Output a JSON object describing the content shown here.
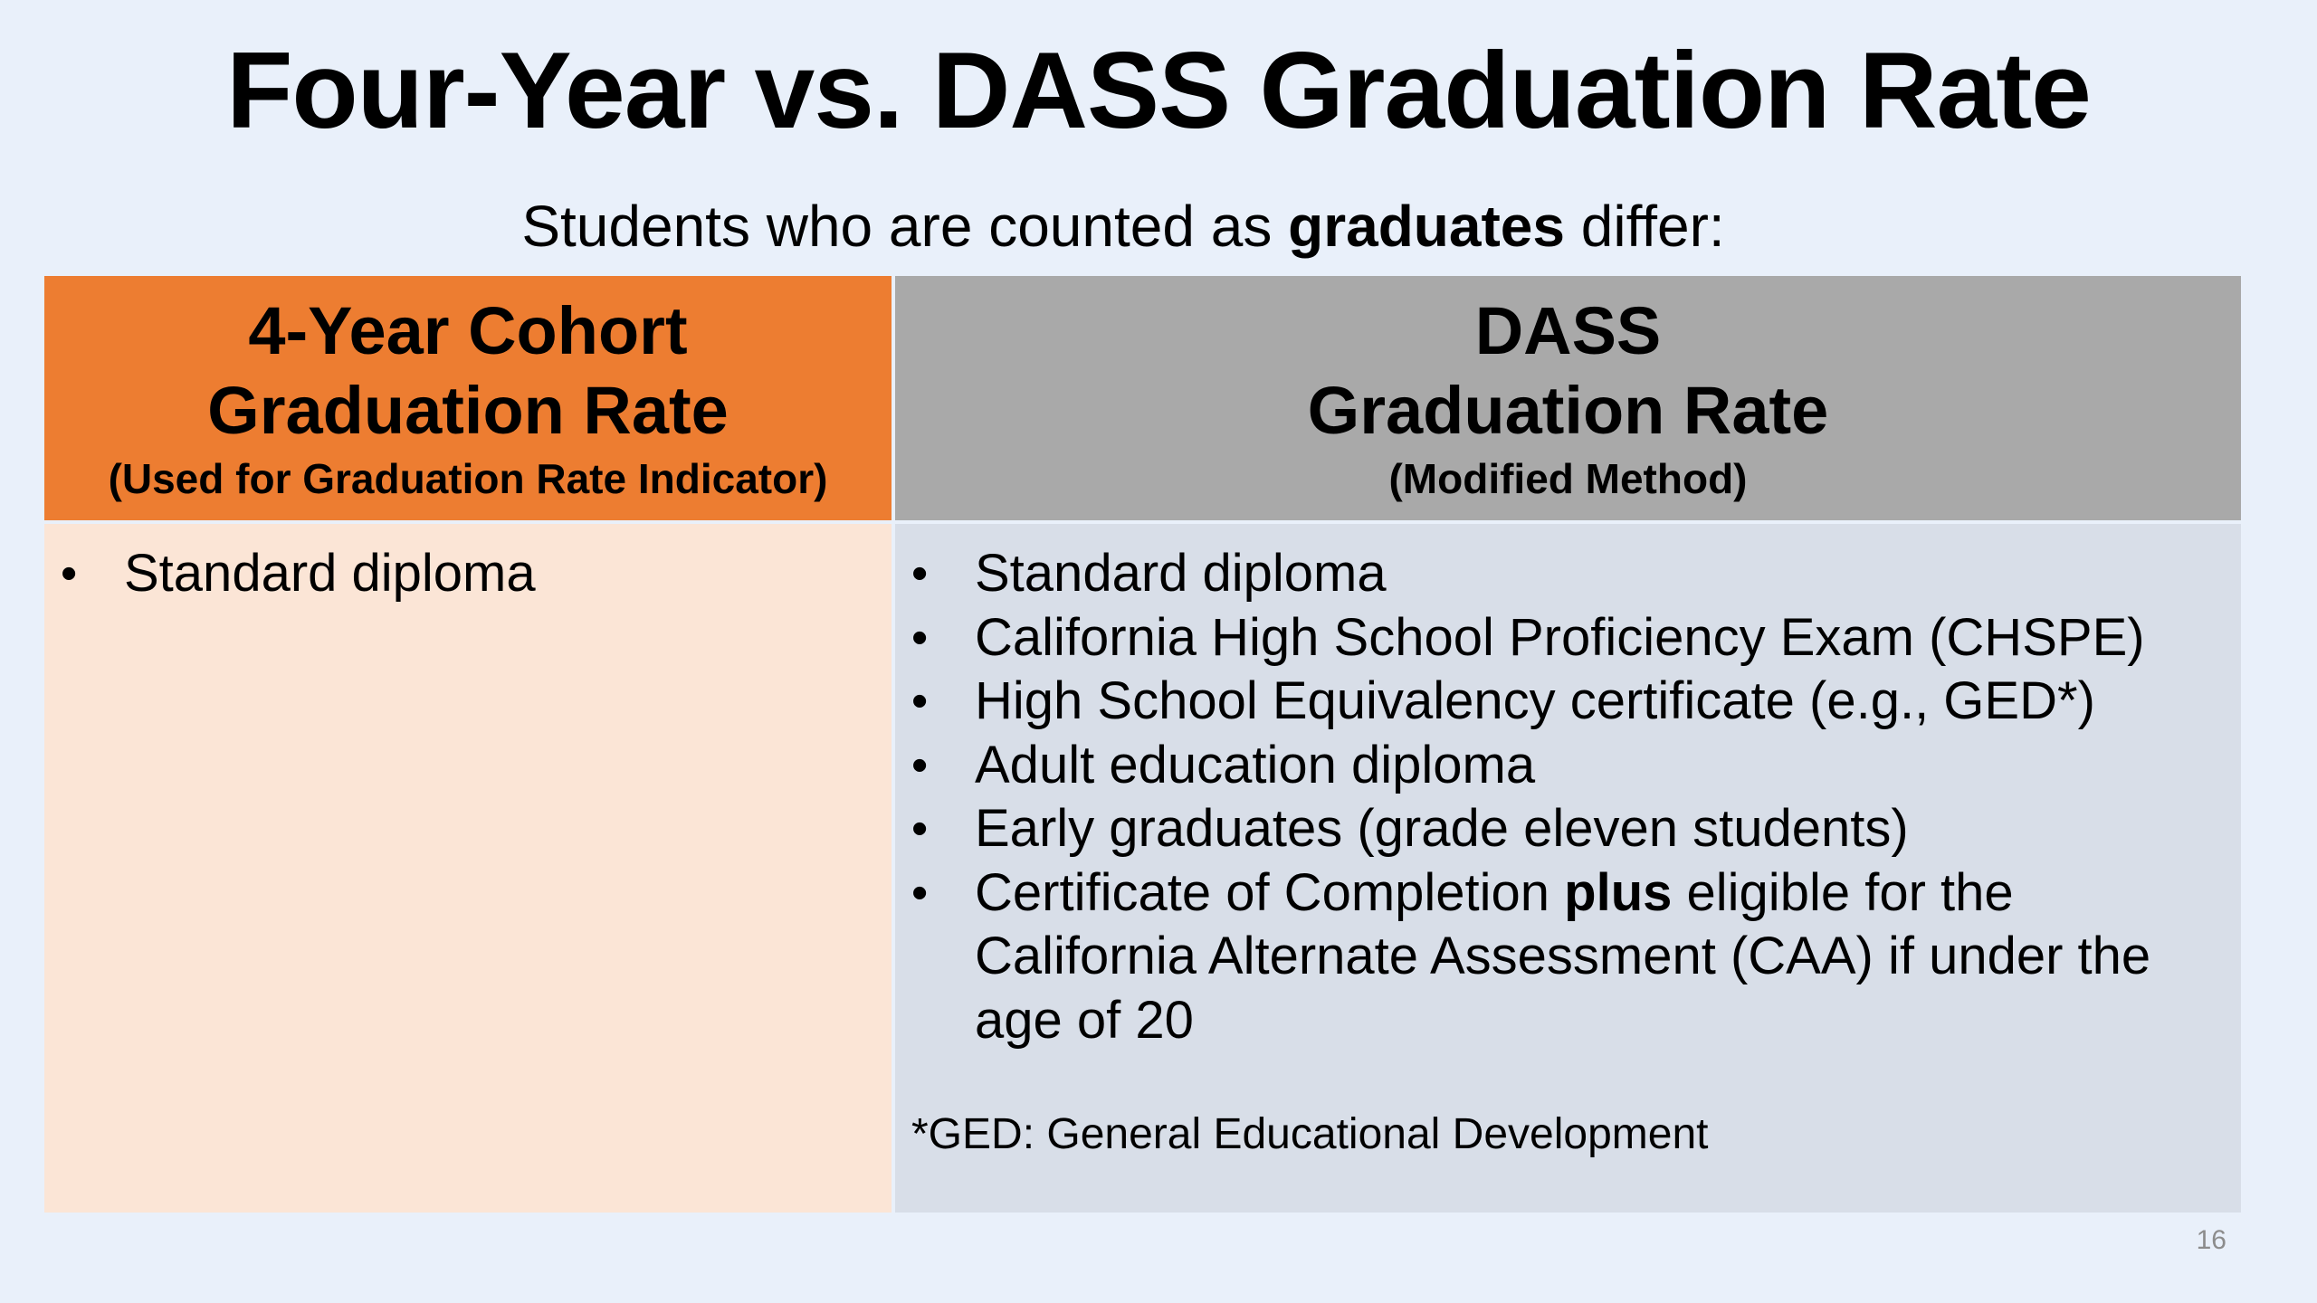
{
  "slide": {
    "title": "Four-Year vs. DASS Graduation Rate",
    "subtitle": {
      "pre": "Students who are counted as ",
      "bold": "graduates",
      "post": " differ:"
    },
    "page_number": "16"
  },
  "left_column": {
    "header_line1": "4-Year Cohort",
    "header_line2": "Graduation Rate",
    "header_note": "(Used for Graduation Rate Indicator)",
    "header_color": "#ed7d31",
    "body_color": "#fbe5d6",
    "items": [
      "Standard diploma"
    ]
  },
  "right_column": {
    "header_line1": "DASS",
    "header_line2": "Graduation Rate",
    "header_note": "(Modified Method)",
    "header_color": "#a9a9a9",
    "body_color": "#d8dee8",
    "items": [
      "Standard diploma",
      "California High School Proficiency Exam (CHSPE)",
      "High School Equivalency certificate (e.g., GED*)",
      "Adult education diploma",
      "Early graduates (grade eleven students)"
    ],
    "last_item": {
      "pre": "Certificate of Completion ",
      "bold": "plus",
      "line1_post": " eligible for the",
      "line2": "California Alternate Assessment (CAA) if under the",
      "line3": "age of 20"
    },
    "footnote": "*GED: General Educational Development"
  },
  "bullet_glyph": "•"
}
